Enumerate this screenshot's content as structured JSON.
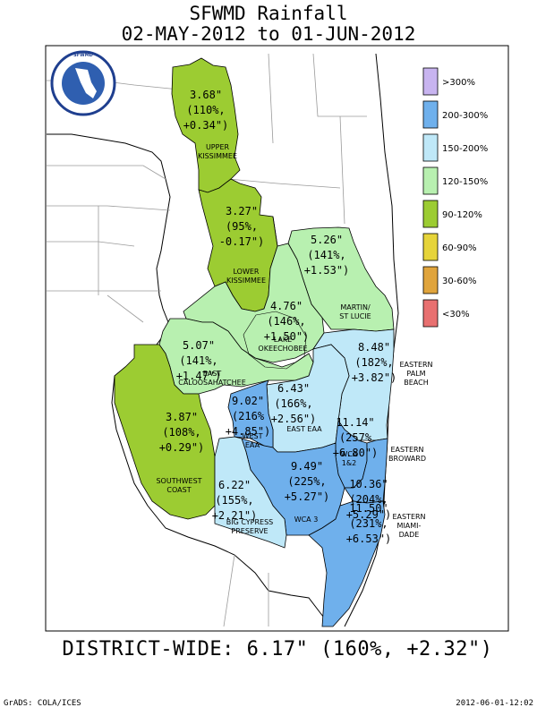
{
  "title": {
    "line1": "SFWMD Rainfall",
    "line2": "02-MAY-2012 to 01-JUN-2012"
  },
  "logo": {
    "text": "SOUTH FLORIDA WATER MANAGEMENT DISTRICT"
  },
  "legend": [
    {
      "label": ">300%",
      "color": "#c8b4f0"
    },
    {
      "label": "200-300%",
      "color": "#6fb0ec"
    },
    {
      "label": "150-200%",
      "color": "#bfe8f8"
    },
    {
      "label": "120-150%",
      "color": "#b8f0b0"
    },
    {
      "label": "90-120%",
      "color": "#9ccc32"
    },
    {
      "label": "60-90%",
      "color": "#e6d43a"
    },
    {
      "label": "30-60%",
      "color": "#e0a43c"
    },
    {
      "label": "<30%",
      "color": "#e87070"
    }
  ],
  "regions": {
    "upper_kissimmee": {
      "name1": "UPPER",
      "name2": "KISSIMMEE",
      "l1": "3.68\"",
      "l2": "(110%,",
      "l3": "+0.34\")"
    },
    "lower_kissimmee": {
      "name1": "LOWER",
      "name2": "KISSIMMEE",
      "l1": "3.27\"",
      "l2": "(95%,",
      "l3": "-0.17\")"
    },
    "martin_st_lucie": {
      "name1": "MARTIN/",
      "name2": "ST LUCIE",
      "l1": "5.26\"",
      "l2": "(141%,",
      "l3": "+1.53\")"
    },
    "lake_okeechobee": {
      "name1": "LAKE",
      "name2": "OKEECHOBEE",
      "l1": "4.76\"",
      "l2": "(146%,",
      "l3": "+1.50\")"
    },
    "east_caloosahatchee": {
      "name1": "EAST",
      "name2": "CALOOSAHATCHEE",
      "l1": "5.07\"",
      "l2": "(141%,",
      "l3": "+1.47\")"
    },
    "eastern_palm_beach": {
      "name1": "EASTERN",
      "name2": "PALM",
      "name3": "BEACH",
      "l1": "8.48\"",
      "l2": "(182%,",
      "l3": "+3.82\")"
    },
    "east_eaa": {
      "name1": "EAST EAA",
      "l1": "6.43\"",
      "l2": "(166%,",
      "l3": "+2.56\")"
    },
    "west_eaa": {
      "name1": "WEST",
      "name2": "EAA",
      "l1": "9.02\"",
      "l2": "(216%",
      "l3": "+4.85\")"
    },
    "wca_1_2": {
      "name1": "WCA",
      "name2": "1&2",
      "l1": "11.14\"",
      "l2": "(257%",
      "l3": "+6.80\")"
    },
    "southwest_coast": {
      "name1": "SOUTHWEST",
      "name2": "COAST",
      "l1": "3.87\"",
      "l2": "(108%,",
      "l3": "+0.29\")"
    },
    "wca_3": {
      "name1": "WCA 3",
      "l1": "9.49\"",
      "l2": "(225%,",
      "l3": "+5.27\")"
    },
    "eastern_broward": {
      "name1": "EASTERN",
      "name2": "BROWARD",
      "l1": "10.36\"",
      "l2": "(204%,",
      "l3": "+5.29\")"
    },
    "big_cypress": {
      "name1": "BIG CYPRESS",
      "name2": "PRESERVE",
      "l1": "6.22\"",
      "l2": "(155%,",
      "l3": "+2.21\")"
    },
    "eastern_miami_dade": {
      "name1": "EASTERN",
      "name2": "MIAMI-",
      "name3": "DADE",
      "l1": "11.50\"",
      "l2": "(231%,",
      "l3": "+6.53\")"
    }
  },
  "summary": "DISTRICT-WIDE: 6.17\"  (160%, +2.32\")",
  "footer": {
    "left": "GrADS: COLA/ICES",
    "right": "2012-06-01-12:02"
  }
}
